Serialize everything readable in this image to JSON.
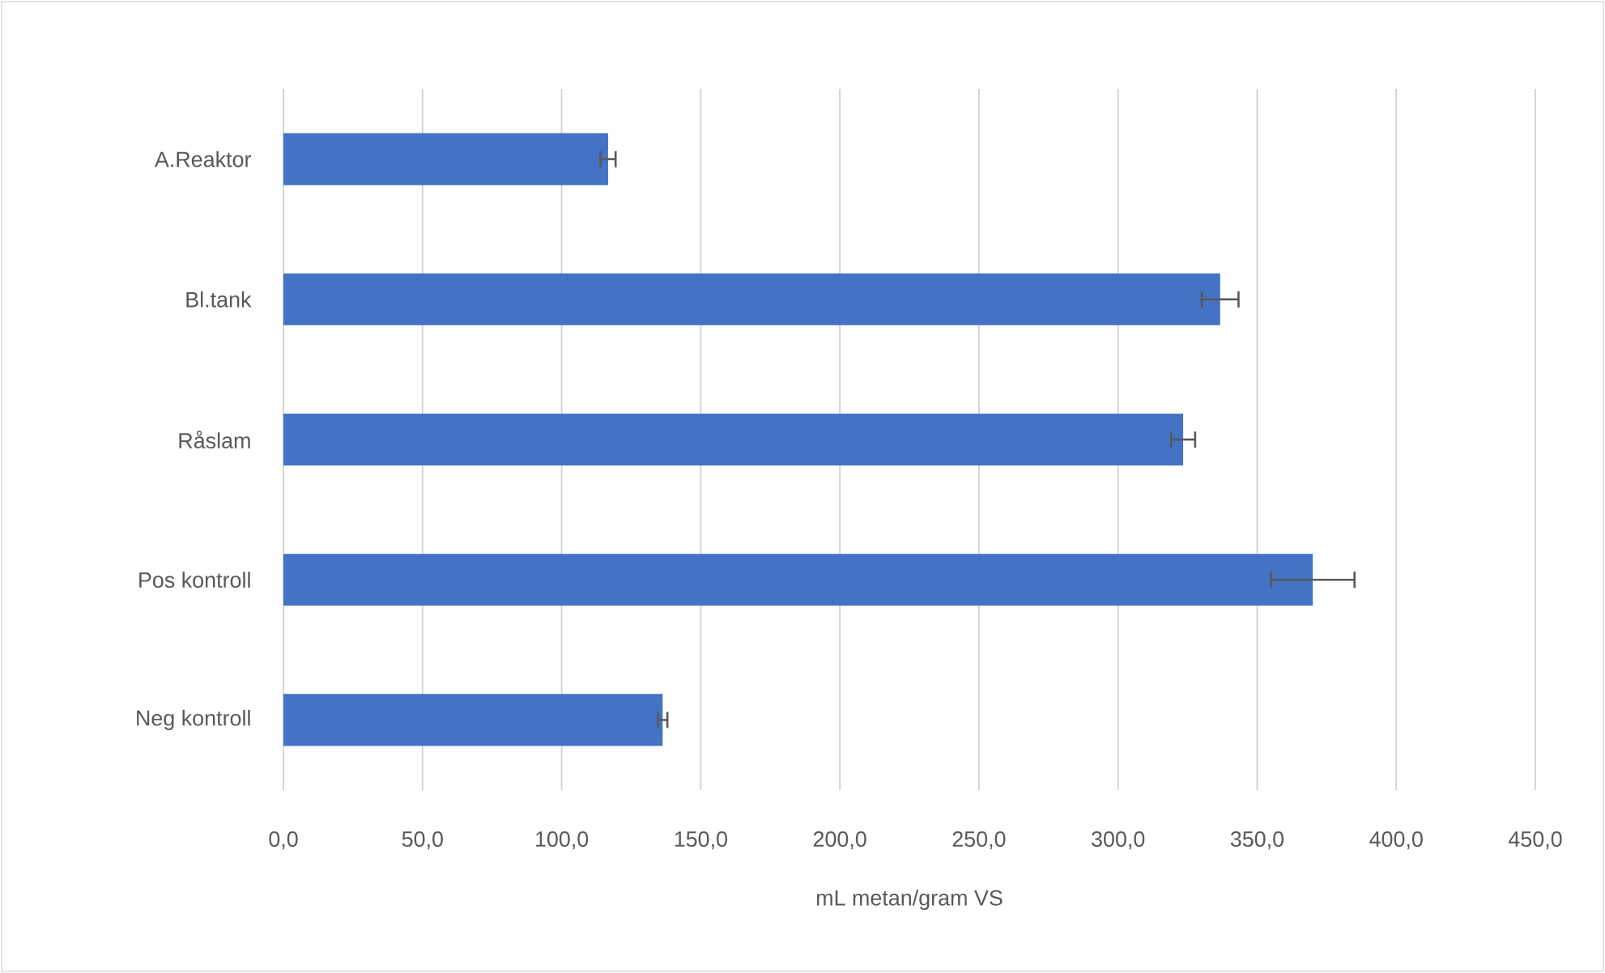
{
  "chart_data": {
    "type": "bar",
    "orientation": "horizontal",
    "categories": [
      "A.Reaktor",
      "Bl.tank",
      "Råslam",
      "Pos kontroll",
      "Neg  kontroll"
    ],
    "values": [
      116.7,
      336.7,
      323.4,
      370,
      136.3
    ],
    "errors": [
      2.7,
      6.6,
      4.3,
      15,
      1.7
    ],
    "color": "#4472c4",
    "xlim": [
      0,
      450
    ],
    "xticks": [
      {
        "value": 0,
        "label": "0,0"
      },
      {
        "value": 50,
        "label": "50,0"
      },
      {
        "value": 100,
        "label": "100,0"
      },
      {
        "value": 150,
        "label": "150,0"
      },
      {
        "value": 200,
        "label": "200,0"
      },
      {
        "value": 250,
        "label": "250,0"
      },
      {
        "value": 300,
        "label": "300,0"
      },
      {
        "value": 350,
        "label": "350,0"
      },
      {
        "value": 400,
        "label": "400,0"
      },
      {
        "value": 450,
        "label": "450,0"
      }
    ],
    "xlabel": "mL metan/gram VS",
    "grid": "x"
  }
}
